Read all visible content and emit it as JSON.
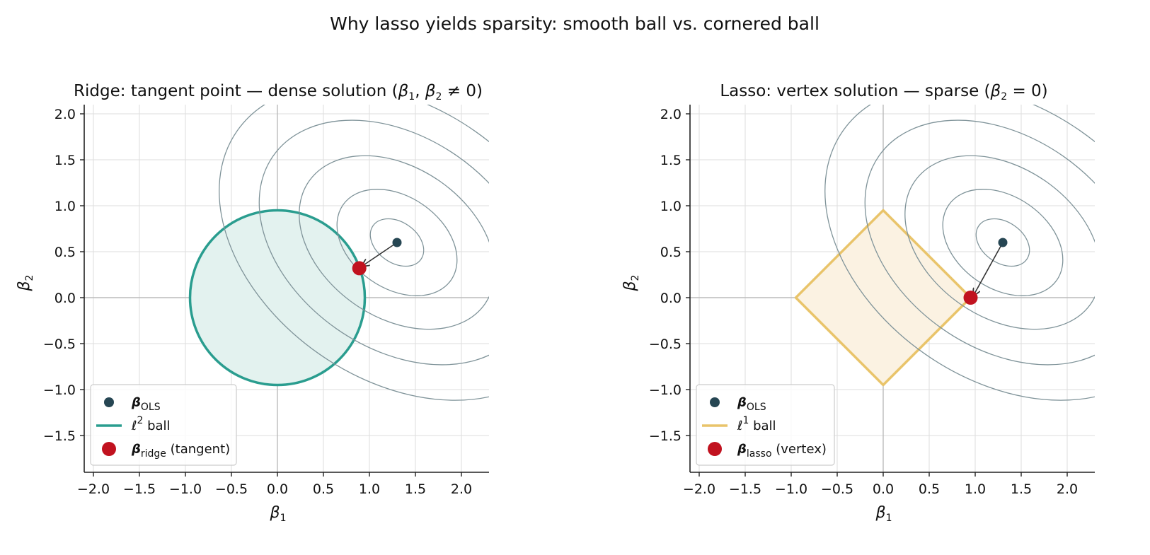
{
  "figure": {
    "title": "Why lasso yields sparsity: smooth ball vs. cornered ball"
  },
  "colors": {
    "contour": "#7f9399",
    "ridge": "#2a9d8f",
    "ridge_fill": "#e3f2ef",
    "lasso": "#e9c46a",
    "lasso_fill": "#fbf2e2",
    "ols_point": "#264653",
    "solution_point": "#c1121f",
    "grid": "#dddddd",
    "zero_line": "#bbbbbb",
    "arrow": "#333333"
  },
  "chart_data": [
    {
      "type": "scatter",
      "title_parts": {
        "prefix": "Ridge: tangent point — dense solution (",
        "hat1": "β",
        "sub1": "1",
        "sep": ", ",
        "hat2": "β",
        "sub2": "2",
        "suffix": " ≠ 0)"
      },
      "xlabel": {
        "base": "β",
        "sub": "1"
      },
      "ylabel": {
        "base": "β",
        "sub": "2"
      },
      "xlim": [
        -2.1,
        2.3
      ],
      "ylim": [
        -1.9,
        2.1
      ],
      "xticks": [
        -2.0,
        -1.5,
        -1.0,
        -0.5,
        0.0,
        0.5,
        1.0,
        1.5,
        2.0
      ],
      "yticks": [
        -1.5,
        -1.0,
        -0.5,
        0.0,
        0.5,
        1.0,
        1.5,
        2.0
      ],
      "xtick_labels": [
        "−2.0",
        "−1.5",
        "−1.0",
        "−0.5",
        "0.0",
        "0.5",
        "1.0",
        "1.5",
        "2.0"
      ],
      "ytick_labels": [
        "−1.5",
        "−1.0",
        "−0.5",
        "0.0",
        "0.5",
        "1.0",
        "1.5",
        "2.0"
      ],
      "grid": true,
      "ball": {
        "shape": "circle",
        "radius": 0.95
      },
      "ols": {
        "x": 1.3,
        "y": 0.6
      },
      "solution": {
        "x": 0.89,
        "y": 0.32
      },
      "contour_center": [
        1.3,
        0.6
      ],
      "contour_levels": [
        0.6,
        1.35,
        2.2,
        3.1,
        4.0
      ],
      "contour_shape": {
        "angle_deg": -55,
        "major": 1.0,
        "minor": 0.45
      },
      "legend_position": "lower-left",
      "legend": [
        {
          "marker": "dot",
          "bold": "β",
          "sub": "OLS",
          "extra": ""
        },
        {
          "marker": "line",
          "ell": "ℓ",
          "sup": "2",
          "text": " ball"
        },
        {
          "marker": "bigdot",
          "bold": "β",
          "sub": "ridge",
          "extra": "(tangent)"
        }
      ]
    },
    {
      "type": "scatter",
      "title_parts": {
        "prefix": "Lasso: vertex solution — sparse (",
        "hat2": "β",
        "sub2": "2",
        "suffix": " = 0)"
      },
      "xlabel": {
        "base": "β",
        "sub": "1"
      },
      "ylabel": {
        "base": "β",
        "sub": "2"
      },
      "xlim": [
        -2.1,
        2.3
      ],
      "ylim": [
        -1.9,
        2.1
      ],
      "xticks": [
        -2.0,
        -1.5,
        -1.0,
        -0.5,
        0.0,
        0.5,
        1.0,
        1.5,
        2.0
      ],
      "yticks": [
        -1.5,
        -1.0,
        -0.5,
        0.0,
        0.5,
        1.0,
        1.5,
        2.0
      ],
      "xtick_labels": [
        "−2.0",
        "−1.5",
        "−1.0",
        "−0.5",
        "0.0",
        "0.5",
        "1.0",
        "1.5",
        "2.0"
      ],
      "ytick_labels": [
        "−1.5",
        "−1.0",
        "−0.5",
        "0.0",
        "0.5",
        "1.0",
        "1.5",
        "2.0"
      ],
      "grid": true,
      "ball": {
        "shape": "diamond",
        "radius": 0.95
      },
      "ols": {
        "x": 1.3,
        "y": 0.6
      },
      "solution": {
        "x": 0.95,
        "y": 0.0
      },
      "contour_center": [
        1.3,
        0.6
      ],
      "contour_levels": [
        0.6,
        1.35,
        2.2,
        3.1,
        4.0
      ],
      "contour_shape": {
        "angle_deg": -55,
        "major": 1.0,
        "minor": 0.45
      },
      "legend_position": "lower-left",
      "legend": [
        {
          "marker": "dot",
          "bold": "β",
          "sub": "OLS",
          "extra": ""
        },
        {
          "marker": "line",
          "ell": "ℓ",
          "sup": "1",
          "text": " ball"
        },
        {
          "marker": "bigdot",
          "bold": "β",
          "sub": "lasso",
          "extra": "(vertex)"
        }
      ]
    }
  ]
}
